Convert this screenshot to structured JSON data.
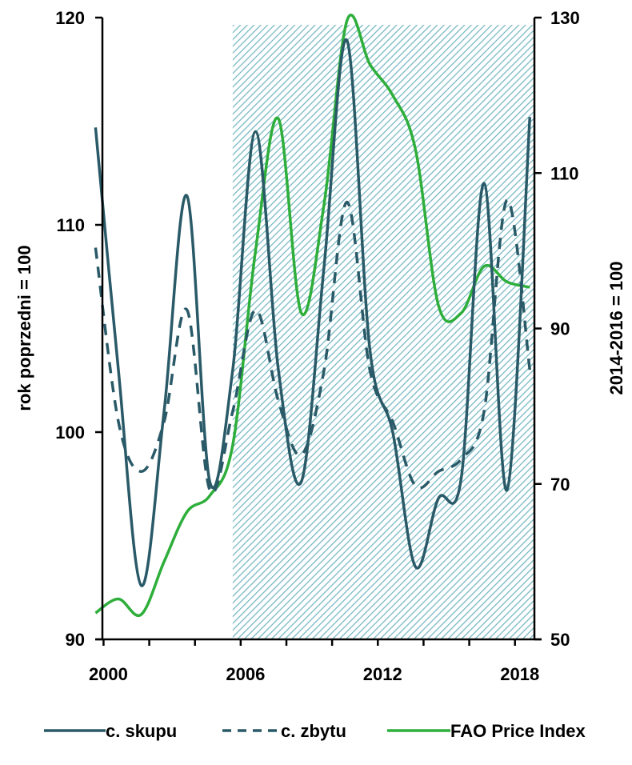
{
  "chart_data": {
    "type": "line",
    "x_ticks": [
      2000,
      2006,
      2012,
      2018
    ],
    "y_left": {
      "label": "rok poprzedni = 100",
      "ticks": [
        90,
        100,
        110,
        120
      ],
      "range": [
        90,
        120
      ]
    },
    "y_right": {
      "label": "2014-2016 = 100",
      "ticks": [
        50,
        70,
        90,
        110,
        130
      ],
      "range": [
        50,
        130
      ]
    },
    "x_range": [
      2000,
      2019
    ],
    "shaded_region": {
      "from": 2006,
      "to": 2019,
      "pattern": "diagonal-hatch",
      "color": "#6fb3c0"
    },
    "series": [
      {
        "name": "c. skupu",
        "axis": "left",
        "style": "solid",
        "color": "#2a5a68",
        "points": [
          [
            2000,
            114.7
          ],
          [
            2001,
            103
          ],
          [
            2002,
            92.6
          ],
          [
            2003,
            101
          ],
          [
            2004,
            111.4
          ],
          [
            2005,
            97.6
          ],
          [
            2006,
            103
          ],
          [
            2007,
            114.5
          ],
          [
            2008,
            103
          ],
          [
            2009,
            97.6
          ],
          [
            2010,
            108
          ],
          [
            2011,
            118.9
          ],
          [
            2012,
            104
          ],
          [
            2013,
            100
          ],
          [
            2014,
            93.5
          ],
          [
            2015,
            96.8
          ],
          [
            2016,
            97.8
          ],
          [
            2017,
            112
          ],
          [
            2018,
            97.2
          ],
          [
            2019,
            115.2
          ]
        ]
      },
      {
        "name": "c. zbytu",
        "axis": "left",
        "style": "dashed",
        "color": "#2a5a68",
        "points": [
          [
            2000,
            108.9
          ],
          [
            2001,
            100.5
          ],
          [
            2002,
            98.1
          ],
          [
            2003,
            100.5
          ],
          [
            2004,
            105.9
          ],
          [
            2005,
            97.2
          ],
          [
            2006,
            101
          ],
          [
            2007,
            105.9
          ],
          [
            2008,
            101.5
          ],
          [
            2009,
            98.9
          ],
          [
            2010,
            103
          ],
          [
            2011,
            111.1
          ],
          [
            2012,
            103
          ],
          [
            2013,
            100.5
          ],
          [
            2014,
            97.4
          ],
          [
            2015,
            98.1
          ],
          [
            2016,
            98.7
          ],
          [
            2017,
            101
          ],
          [
            2018,
            111.2
          ],
          [
            2019,
            103
          ]
        ]
      },
      {
        "name": "FAO Price Index",
        "axis": "right",
        "style": "solid",
        "color": "#2eae3b",
        "points": [
          [
            2000,
            53.4
          ],
          [
            2001,
            55.2
          ],
          [
            2002,
            53.2
          ],
          [
            2003,
            60
          ],
          [
            2004,
            66.4
          ],
          [
            2005,
            68.5
          ],
          [
            2006,
            75
          ],
          [
            2007,
            100
          ],
          [
            2008,
            117
          ],
          [
            2009,
            92
          ],
          [
            2010,
            106
          ],
          [
            2011,
            129.6
          ],
          [
            2012,
            124
          ],
          [
            2013,
            120
          ],
          [
            2014,
            113
          ],
          [
            2015,
            93
          ],
          [
            2016,
            92
          ],
          [
            2017,
            98
          ],
          [
            2018,
            96
          ],
          [
            2019,
            95.3
          ]
        ]
      }
    ]
  },
  "legend": [
    {
      "label": "c. skupu",
      "style": "solid",
      "color": "#2a5a68"
    },
    {
      "label": "c. zbytu",
      "style": "dashed",
      "color": "#2a5a68"
    },
    {
      "label": "FAO Price Index",
      "style": "solid",
      "color": "#2eae3b"
    }
  ]
}
